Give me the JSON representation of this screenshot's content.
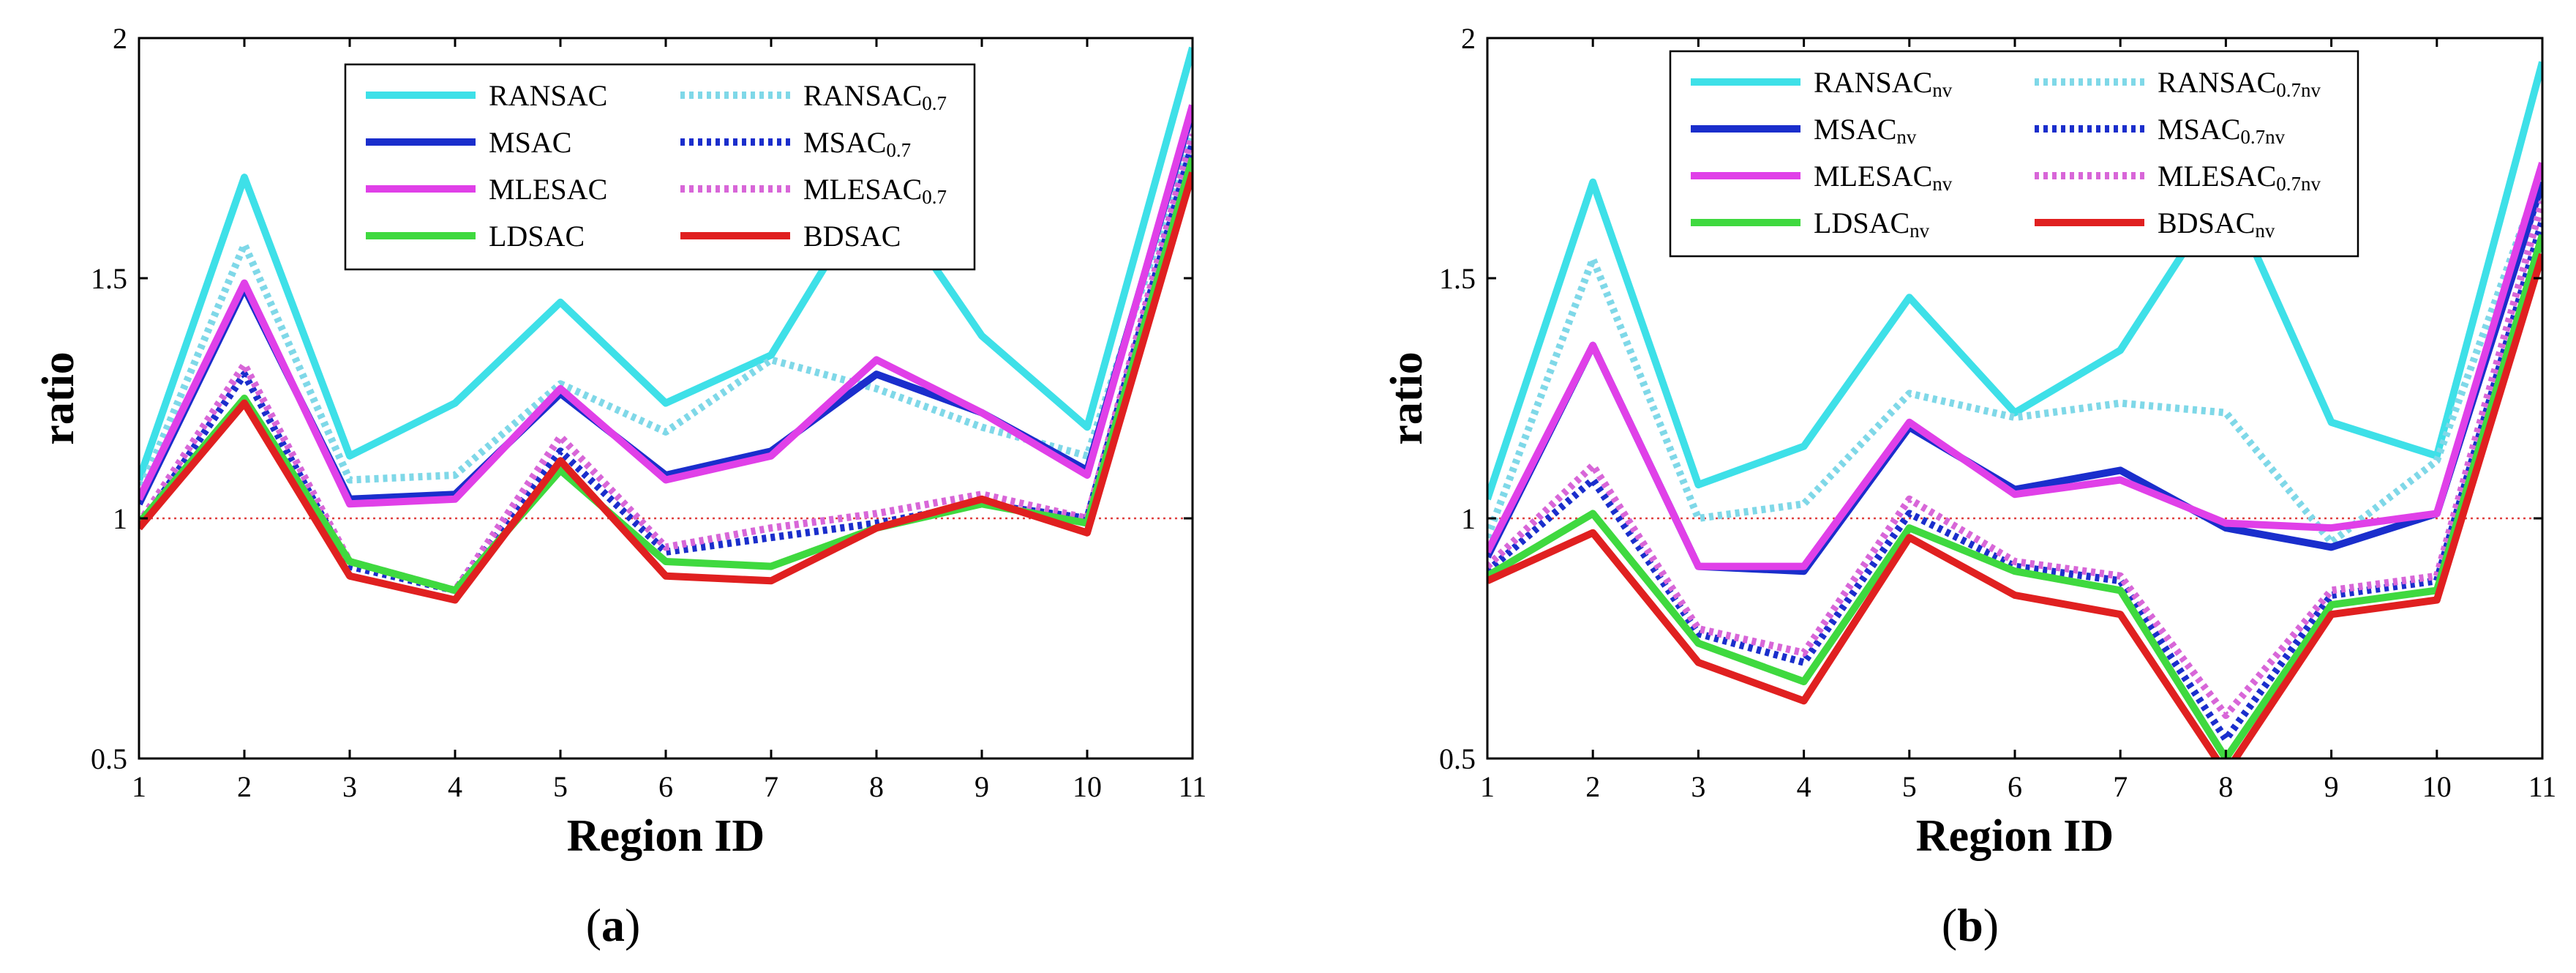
{
  "panel_a": {
    "label": "a",
    "xlabel": "Region ID",
    "ylabel": "ratio"
  },
  "panel_b": {
    "label": "b",
    "xlabel": "Region ID",
    "ylabel": "ratio"
  },
  "chart_data": [
    {
      "type": "line",
      "panel": "a",
      "xlabel": "Region ID",
      "ylabel": "ratio",
      "xlim": [
        1,
        11
      ],
      "ylim": [
        0.5,
        2
      ],
      "x": [
        1,
        2,
        3,
        4,
        5,
        6,
        7,
        8,
        9,
        10,
        11
      ],
      "x_ticks": [
        "1",
        "2",
        "3",
        "4",
        "5",
        "6",
        "7",
        "8",
        "9",
        "10",
        "11"
      ],
      "y_ticks": [
        0.5,
        1,
        1.5,
        2
      ],
      "y_tick_labels": [
        "0.5",
        "1",
        "1.5",
        "2"
      ],
      "reference_line": 1,
      "legend_position": "top-center",
      "series": [
        {
          "name": "RANSAC",
          "sub": "",
          "color": "#3ee0e8",
          "style": "solid",
          "values": [
            1.08,
            1.71,
            1.13,
            1.24,
            1.45,
            1.24,
            1.34,
            1.7,
            1.38,
            1.19,
            1.98
          ]
        },
        {
          "name": "RANSAC",
          "sub": "0.7",
          "color": "#7fd8e8",
          "style": "dotted",
          "values": [
            1.05,
            1.57,
            1.08,
            1.09,
            1.28,
            1.18,
            1.33,
            1.27,
            1.19,
            1.13,
            1.8
          ]
        },
        {
          "name": "MSAC",
          "sub": "",
          "color": "#1a2ecc",
          "style": "solid",
          "values": [
            1.03,
            1.48,
            1.04,
            1.05,
            1.26,
            1.09,
            1.14,
            1.3,
            1.22,
            1.1,
            1.85
          ]
        },
        {
          "name": "MSAC",
          "sub": "0.7",
          "color": "#1a2ecc",
          "style": "dotted",
          "values": [
            0.98,
            1.3,
            0.9,
            0.85,
            1.14,
            0.93,
            0.96,
            0.99,
            1.03,
            1.0,
            1.78
          ]
        },
        {
          "name": "MLESAC",
          "sub": "",
          "color": "#e040e8",
          "style": "solid",
          "values": [
            1.04,
            1.49,
            1.03,
            1.04,
            1.27,
            1.08,
            1.13,
            1.33,
            1.22,
            1.09,
            1.86
          ]
        },
        {
          "name": "MLESAC",
          "sub": "0.7",
          "color": "#d866d8",
          "style": "dotted",
          "values": [
            0.99,
            1.32,
            0.91,
            0.85,
            1.17,
            0.94,
            0.98,
            1.01,
            1.05,
            1.0,
            1.8
          ]
        },
        {
          "name": "LDSAC",
          "sub": "",
          "color": "#3fd93f",
          "style": "solid",
          "values": [
            0.99,
            1.25,
            0.91,
            0.85,
            1.1,
            0.91,
            0.9,
            0.98,
            1.03,
            0.99,
            1.75
          ]
        },
        {
          "name": "BDSAC",
          "sub": "",
          "color": "#e02020",
          "style": "solid",
          "values": [
            0.98,
            1.24,
            0.88,
            0.83,
            1.12,
            0.88,
            0.87,
            0.98,
            1.04,
            0.97,
            1.72
          ]
        }
      ]
    },
    {
      "type": "line",
      "panel": "b",
      "xlabel": "Region ID",
      "ylabel": "ratio",
      "xlim": [
        1,
        11
      ],
      "ylim": [
        0.5,
        2
      ],
      "x": [
        1,
        2,
        3,
        4,
        5,
        6,
        7,
        8,
        9,
        10,
        11
      ],
      "x_ticks": [
        "1",
        "2",
        "3",
        "4",
        "5",
        "6",
        "7",
        "8",
        "9",
        "10",
        "11"
      ],
      "y_ticks": [
        0.5,
        1,
        1.5,
        2
      ],
      "y_tick_labels": [
        "0.5",
        "1",
        "1.5",
        "2"
      ],
      "reference_line": 1,
      "legend_position": "top-left",
      "series": [
        {
          "name": "RANSAC",
          "sub": "nv",
          "color": "#3ee0e8",
          "style": "solid",
          "values": [
            1.04,
            1.7,
            1.07,
            1.15,
            1.46,
            1.22,
            1.35,
            1.69,
            1.2,
            1.13,
            1.95
          ]
        },
        {
          "name": "RANSAC",
          "sub": "0.7nv",
          "color": "#7fd8e8",
          "style": "dotted",
          "values": [
            0.96,
            1.54,
            1.0,
            1.03,
            1.26,
            1.21,
            1.24,
            1.22,
            0.95,
            1.12,
            1.72
          ]
        },
        {
          "name": "MSAC",
          "sub": "nv",
          "color": "#1a2ecc",
          "style": "solid",
          "values": [
            0.92,
            1.36,
            0.9,
            0.89,
            1.19,
            1.06,
            1.1,
            0.98,
            0.94,
            1.01,
            1.7
          ]
        },
        {
          "name": "MSAC",
          "sub": "0.7nv",
          "color": "#1a2ecc",
          "style": "dotted",
          "values": [
            0.89,
            1.08,
            0.76,
            0.7,
            1.01,
            0.9,
            0.87,
            0.54,
            0.84,
            0.87,
            1.62
          ]
        },
        {
          "name": "MLESAC",
          "sub": "nv",
          "color": "#e040e8",
          "style": "solid",
          "values": [
            0.93,
            1.36,
            0.9,
            0.9,
            1.2,
            1.05,
            1.08,
            0.99,
            0.98,
            1.01,
            1.74
          ]
        },
        {
          "name": "MLESAC",
          "sub": "0.7nv",
          "color": "#d866d8",
          "style": "dotted",
          "values": [
            0.9,
            1.11,
            0.77,
            0.72,
            1.04,
            0.91,
            0.88,
            0.59,
            0.85,
            0.88,
            1.66
          ]
        },
        {
          "name": "LDSAC",
          "sub": "nv",
          "color": "#3fd93f",
          "style": "solid",
          "values": [
            0.88,
            1.01,
            0.74,
            0.66,
            0.98,
            0.89,
            0.85,
            0.5,
            0.82,
            0.85,
            1.59
          ]
        },
        {
          "name": "BDSAC",
          "sub": "nv",
          "color": "#e02020",
          "style": "solid",
          "values": [
            0.87,
            0.97,
            0.7,
            0.62,
            0.96,
            0.84,
            0.8,
            0.47,
            0.8,
            0.83,
            1.55
          ]
        }
      ]
    }
  ]
}
